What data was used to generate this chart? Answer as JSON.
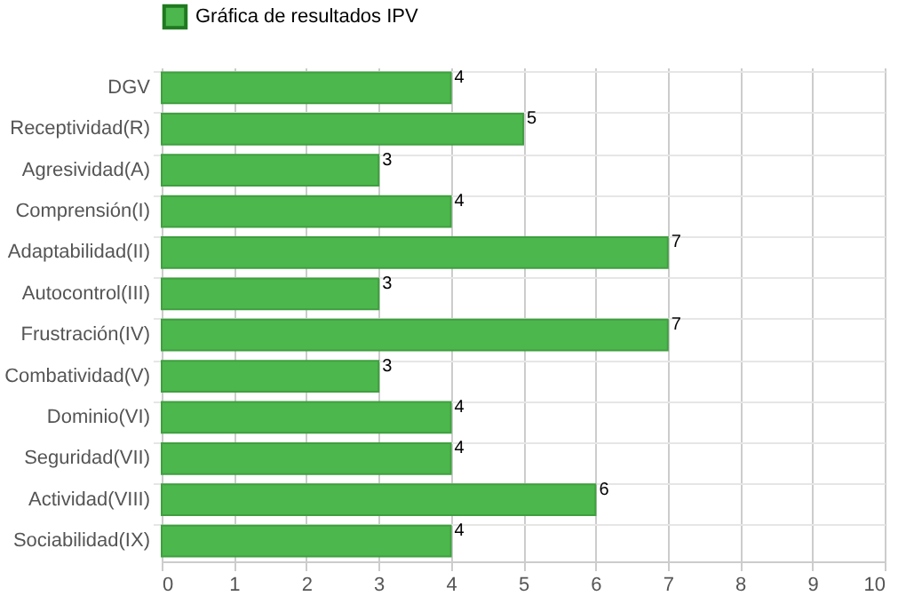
{
  "chart_data": {
    "type": "bar",
    "orientation": "horizontal",
    "categories": [
      "DGV",
      "Receptividad(R)",
      "Agresividad(A)",
      "Comprensión(I)",
      "Adaptabilidad(II)",
      "Autocontrol(III)",
      "Frustración(IV)",
      "Combatividad(V)",
      "Dominio(VI)",
      "Seguridad(VII)",
      "Actividad(VIII)",
      "Sociabilidad(IX)"
    ],
    "series": [
      {
        "name": "Gráfica de resultados IPV",
        "color": "#4cb74c",
        "values": [
          4,
          5,
          3,
          4,
          7,
          3,
          7,
          3,
          4,
          4,
          6,
          4
        ]
      }
    ],
    "xlim": [
      0,
      10
    ],
    "xticks": [
      0,
      1,
      2,
      3,
      4,
      5,
      6,
      7,
      8,
      9,
      10
    ],
    "grid": true,
    "legend": "top",
    "data_labels": true
  }
}
